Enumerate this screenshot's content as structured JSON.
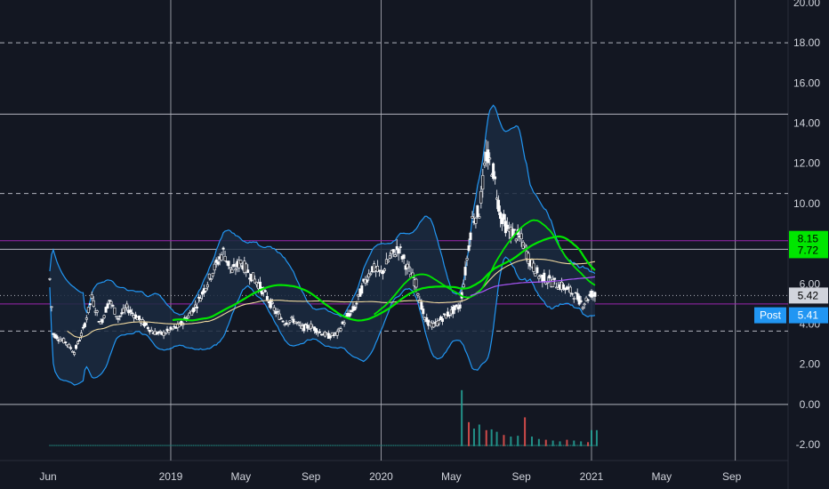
{
  "chart_data": {
    "type": "candlestick",
    "y_axis": {
      "ylim": [
        -2.6,
        20.2
      ],
      "ticks": [
        "20.00",
        "18.00",
        "16.00",
        "14.00",
        "12.00",
        "10.00",
        "8.00",
        "6.00",
        "4.00",
        "2.00",
        "0.00",
        "-2.00"
      ],
      "tick_values": [
        20,
        18,
        16,
        14,
        12,
        10,
        8,
        6,
        4,
        2,
        0,
        -2
      ]
    },
    "x_axis": {
      "ticks": [
        "Jun",
        "2019",
        "May",
        "Sep",
        "2020",
        "May",
        "Sep",
        "2021",
        "May",
        "Sep"
      ],
      "tick_months": [
        0,
        7,
        11,
        15,
        19,
        23,
        27,
        31,
        35,
        39
      ],
      "xlim_months": [
        -0.6,
        41.5
      ]
    },
    "horizontal_lines": [
      {
        "value": 14.45,
        "style": "solid",
        "color": "#b2b5be"
      },
      {
        "value": 10.5,
        "style": "dashed",
        "color": "#b2b5be"
      },
      {
        "value": 8.15,
        "style": "solid",
        "color": "#9c27b0"
      },
      {
        "value": 7.72,
        "style": "solid",
        "color": "#b2b5be"
      },
      {
        "value": 5.42,
        "style": "dotted",
        "color": "#b2b5be"
      },
      {
        "value": 5.0,
        "style": "solid",
        "color": "#9c27b0"
      },
      {
        "value": 3.65,
        "style": "dashed",
        "color": "#b2b5be"
      },
      {
        "value": 18.0,
        "style": "dashed",
        "color": "#b2b5be"
      },
      {
        "value": 0.0,
        "style": "solid",
        "color": "#b2b5be"
      }
    ],
    "vertical_lines_months": [
      7,
      19,
      31,
      39.2
    ],
    "price_samples": {
      "months": [
        0,
        0.3,
        0.6,
        1,
        1.5,
        2,
        2.5,
        3,
        3.5,
        4,
        4.5,
        5,
        5.5,
        6,
        6.5,
        7,
        7.5,
        8,
        8.5,
        9,
        9.5,
        10,
        10.5,
        11,
        11.5,
        12,
        12.5,
        13,
        13.5,
        14,
        14.5,
        15,
        15.5,
        16,
        16.5,
        17,
        17.5,
        18,
        18.5,
        19,
        19.5,
        20,
        20.5,
        21,
        21.5,
        22,
        22.5,
        23,
        23.5,
        23.8,
        24.2,
        24.6,
        25,
        25.4,
        25.8,
        26.2,
        26.6,
        27,
        27.5,
        28,
        28.5,
        29,
        29.5,
        30,
        30.5,
        31,
        31.3
      ],
      "close": [
        7.6,
        3.5,
        3.3,
        3.1,
        2.6,
        3.7,
        5.3,
        4.0,
        5.2,
        4.3,
        4.8,
        4.4,
        4.0,
        3.6,
        3.5,
        3.7,
        3.9,
        4.4,
        5.0,
        5.9,
        6.8,
        7.6,
        6.6,
        7.1,
        6.5,
        6.0,
        5.3,
        4.6,
        4.1,
        4.2,
        3.8,
        3.9,
        3.6,
        3.4,
        3.5,
        4.3,
        4.8,
        6.0,
        6.8,
        6.5,
        7.3,
        7.8,
        6.8,
        6.0,
        4.2,
        3.9,
        4.3,
        4.6,
        4.9,
        6.6,
        9.2,
        9.6,
        12.4,
        11.6,
        9.5,
        8.7,
        8.5,
        8.2,
        7.1,
        6.4,
        6.2,
        6.0,
        5.8,
        5.5,
        5.0,
        5.5,
        5.4
      ]
    },
    "volume_samples": {
      "months": [
        23.6,
        24,
        24.3,
        24.6,
        25,
        25.3,
        25.6,
        26,
        26.4,
        26.8,
        27.2,
        27.6,
        28,
        28.4,
        28.8,
        29.2,
        29.6,
        30,
        30.4,
        30.8,
        31,
        31.3
      ],
      "values": [
        7.0,
        3.0,
        2.2,
        2.7,
        2.0,
        2.1,
        1.8,
        1.4,
        1.2,
        1.3,
        3.6,
        1.2,
        0.9,
        0.8,
        0.7,
        0.6,
        0.8,
        0.7,
        0.6,
        0.5,
        2.0,
        2.0
      ]
    },
    "indicators": [
      {
        "type": "bollinger-band",
        "color": "#2196f3"
      },
      {
        "type": "moving-average",
        "color": "#00e600",
        "width": 3
      },
      {
        "type": "moving-average",
        "color": "#00e600",
        "width": 2
      },
      {
        "type": "moving-average",
        "color": "#f0d9a0",
        "width": 1
      },
      {
        "type": "moving-average",
        "color": "#a855f7",
        "width": 1
      }
    ],
    "price_labels": [
      {
        "text": "8.15",
        "value": 8.15,
        "bg": "#00e600",
        "fg": "#000000"
      },
      {
        "text": "7.72",
        "value": 7.72,
        "bg": "#00e600",
        "fg": "#000000"
      },
      {
        "text": "5.42",
        "value": 5.42,
        "bg": "#d1d4dc",
        "fg": "#000000"
      },
      {
        "text": "5.41",
        "value": 5.41,
        "bg": "#2196f3",
        "fg": "#ffffff",
        "tag": "Post"
      }
    ],
    "colors": {
      "background": "#131722",
      "candle_up": "#ffffff",
      "candle_down": "#d1d4dc",
      "volume_up": "#26a69a",
      "volume_down": "#ef5350",
      "band_fill": "#1b2a40"
    }
  }
}
